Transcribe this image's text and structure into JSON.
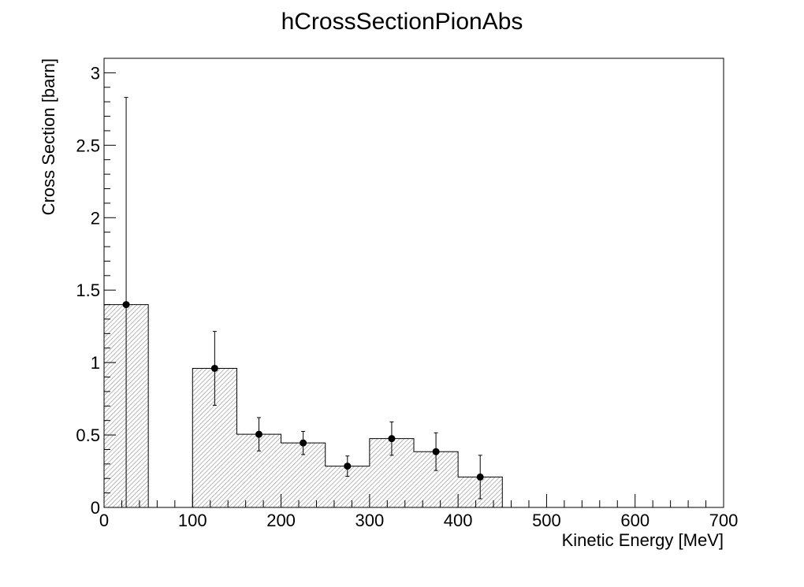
{
  "chart_data": {
    "type": "bar",
    "title": "hCrossSectionPionAbs",
    "xlabel": "Kinetic Energy [MeV]",
    "ylabel": "Cross Section [barn]",
    "xlim": [
      0,
      700
    ],
    "ylim": [
      0,
      3.1
    ],
    "grid": false,
    "legend": "none",
    "x_ticks": [
      0,
      100,
      200,
      300,
      400,
      500,
      600,
      700
    ],
    "y_ticks": [
      0,
      0.5,
      1,
      1.5,
      2,
      2.5,
      3
    ],
    "x_tick_labels": [
      "0",
      "100",
      "200",
      "300",
      "400",
      "500",
      "600",
      "700"
    ],
    "y_tick_labels": [
      "0",
      "0.5",
      "1",
      "1.5",
      "2",
      "2.5",
      "3"
    ],
    "bin_edges": [
      0,
      50,
      100,
      150,
      200,
      250,
      300,
      350,
      400,
      450,
      500,
      550,
      600,
      650,
      700
    ],
    "bins": [
      {
        "low": 0,
        "high": 50,
        "value": 1.4,
        "error": 1.43
      },
      {
        "low": 50,
        "high": 100,
        "value": 0,
        "error": 0
      },
      {
        "low": 100,
        "high": 150,
        "value": 0.96,
        "error": 0.255
      },
      {
        "low": 150,
        "high": 200,
        "value": 0.505,
        "error": 0.115
      },
      {
        "low": 200,
        "high": 250,
        "value": 0.445,
        "error": 0.08
      },
      {
        "low": 250,
        "high": 300,
        "value": 0.285,
        "error": 0.07
      },
      {
        "low": 300,
        "high": 350,
        "value": 0.475,
        "error": 0.115
      },
      {
        "low": 350,
        "high": 400,
        "value": 0.385,
        "error": 0.13
      },
      {
        "low": 400,
        "high": 450,
        "value": 0.21,
        "error": 0.15
      },
      {
        "low": 450,
        "high": 500,
        "value": 0,
        "error": 0
      },
      {
        "low": 500,
        "high": 550,
        "value": 0,
        "error": 0
      },
      {
        "low": 550,
        "high": 600,
        "value": 0,
        "error": 0
      },
      {
        "low": 600,
        "high": 650,
        "value": 0,
        "error": 0
      },
      {
        "low": 650,
        "high": 700,
        "value": 0,
        "error": 0
      }
    ],
    "colors": {
      "fill_hatch": "#9a9a9a",
      "line": "#000000",
      "marker": "#000000",
      "background": "#ffffff"
    }
  }
}
